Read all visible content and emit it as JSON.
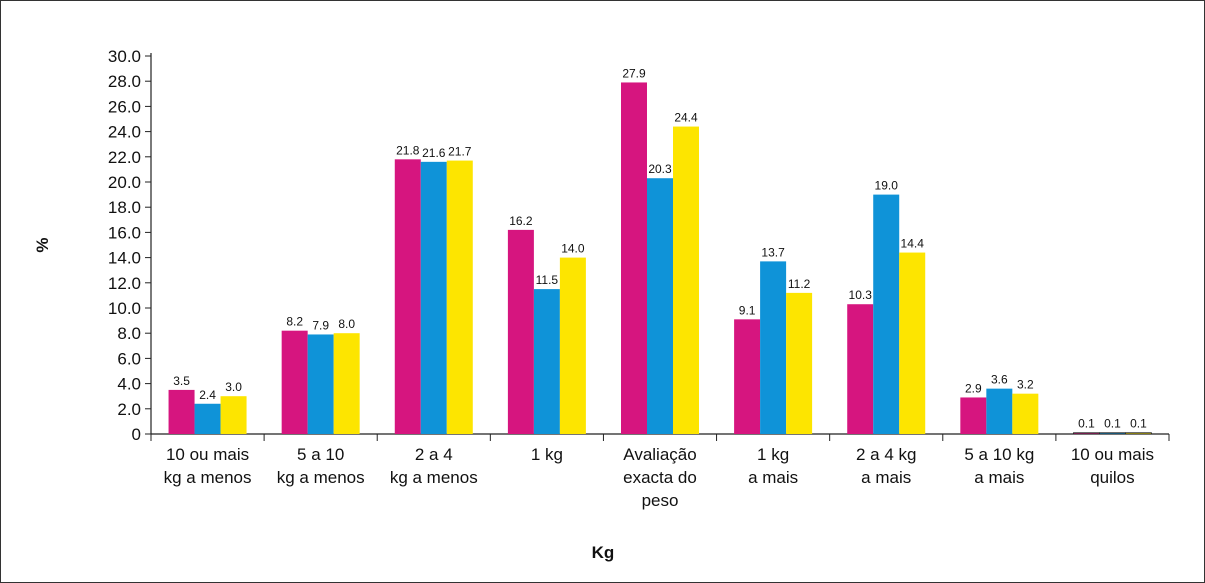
{
  "chart_data": {
    "type": "bar",
    "title": "",
    "xlabel": "Kg",
    "ylabel": "%",
    "ylim": [
      0,
      30
    ],
    "y_ticks": [
      "0",
      "2.0",
      "4.0",
      "6.0",
      "8.0",
      "10.0",
      "12.0",
      "14.0",
      "16.0",
      "18.0",
      "20.0",
      "22.0",
      "24.0",
      "26.0",
      "28.0",
      "30.0"
    ],
    "categories": [
      [
        "10 ou mais",
        "kg a menos"
      ],
      [
        "5 a 10",
        "kg a menos"
      ],
      [
        "2 a 4",
        "kg a menos"
      ],
      [
        "1 kg"
      ],
      [
        "Avaliação",
        "exacta do",
        "peso"
      ],
      [
        "1 kg",
        "a mais"
      ],
      [
        "2 a 4 kg",
        "a mais"
      ],
      [
        "5 a 10 kg",
        "a mais"
      ],
      [
        "10  ou mais",
        "quilos"
      ]
    ],
    "series": [
      {
        "color": "#d6157f",
        "values": [
          3.5,
          8.2,
          21.8,
          16.2,
          27.9,
          9.1,
          10.3,
          2.9,
          0.1
        ],
        "labels": [
          "3.5",
          "8.2",
          "21.8",
          "16.2",
          "27.9",
          "9.1",
          "10.3",
          "2.9",
          "0.1"
        ]
      },
      {
        "color": "#0f93d8",
        "values": [
          2.4,
          7.9,
          21.6,
          11.5,
          20.3,
          13.7,
          19.0,
          3.6,
          0.1
        ],
        "labels": [
          "2.4",
          "7.9",
          "21.6",
          "11.5",
          "20.3",
          "13.7",
          "19.0",
          "3.6",
          "0.1"
        ]
      },
      {
        "color": "#fde500",
        "values": [
          3.0,
          8.0,
          21.7,
          14.0,
          24.4,
          11.2,
          14.4,
          3.2,
          0.1
        ],
        "labels": [
          "3.0",
          "8.0",
          "21.7",
          "14.0",
          "24.4",
          "11.2",
          "14.4",
          "3.2",
          "0.1"
        ]
      }
    ],
    "grid": false,
    "legend": "none"
  }
}
